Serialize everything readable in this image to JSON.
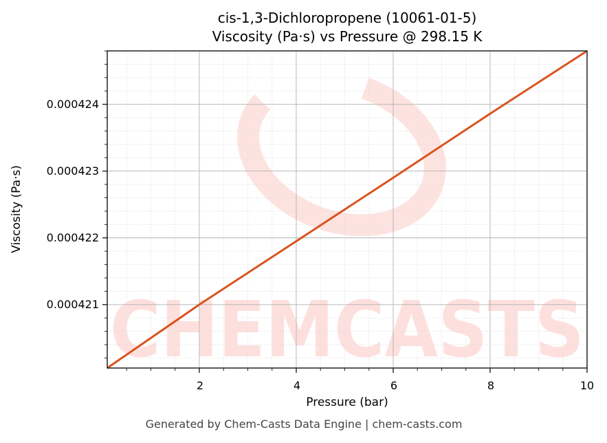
{
  "title": {
    "line1": "cis-1,3-Dichloropropene (10061-01-5)",
    "line2": "Viscosity (Pa·s) vs Pressure @ 298.15 K"
  },
  "axes": {
    "xlabel": "Pressure (bar)",
    "ylabel": "Viscosity (Pa·s)",
    "xticks": [
      "2",
      "4",
      "6",
      "8",
      "10"
    ],
    "yticks": [
      "0.000421",
      "0.000422",
      "0.000423",
      "0.000424"
    ]
  },
  "watermark": {
    "text": "CHEMCASTS",
    "color": "#fde0dd"
  },
  "footer": "Generated by Chem-Casts Data Engine | chem-casts.com",
  "colors": {
    "line": "#d9531e",
    "major_grid": "#b0b0b0",
    "minor_grid": "#dddddd",
    "axis": "#222222"
  },
  "chart_data": {
    "type": "line",
    "title": "cis-1,3-Dichloropropene (10061-01-5) Viscosity (Pa·s) vs Pressure @ 298.15 K",
    "xlabel": "Pressure (bar)",
    "ylabel": "Viscosity (Pa·s)",
    "xlim": [
      0.1,
      10
    ],
    "ylim": [
      0.00042005,
      0.0004248
    ],
    "grid": true,
    "legend": null,
    "series": [
      {
        "name": "Viscosity",
        "x": [
          0.1,
          2,
          4,
          6,
          8,
          10
        ],
        "values": [
          0.00042005,
          0.000421,
          0.00042195,
          0.0004229,
          0.00042386,
          0.0004248
        ]
      }
    ]
  }
}
